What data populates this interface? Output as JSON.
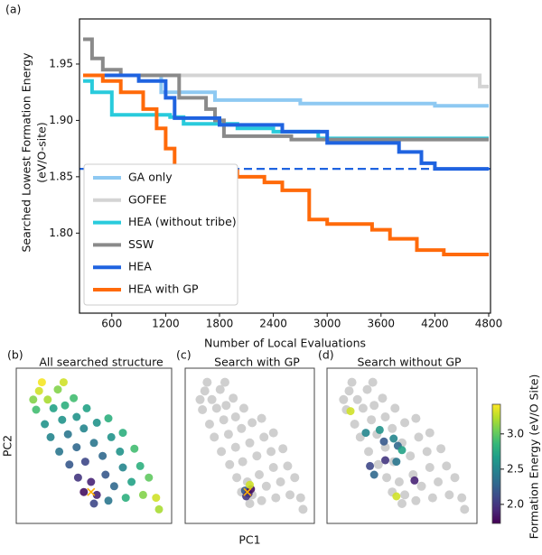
{
  "chart_data": [
    {
      "type": "line",
      "panel_label": "(a)",
      "ylabel": [
        "Searched Lowest Formation Energy",
        "(eV/O-site)"
      ],
      "xlabel": "Number of Local Evaluations",
      "xlim": [
        240,
        4820
      ],
      "ylim": [
        1.729,
        1.99
      ],
      "xticks": [
        600,
        1200,
        1800,
        2400,
        3000,
        3600,
        4200,
        4800
      ],
      "yticks": [
        {
          "value": 1.8,
          "label": "1.80"
        },
        {
          "value": 1.85,
          "label": "1.85"
        },
        {
          "value": 1.9,
          "label": "1.90"
        },
        {
          "value": 1.95,
          "label": "1.95"
        }
      ],
      "reference_line": {
        "value": 1.857,
        "color": "#1f63e0"
      },
      "legend": "lower left",
      "series": [
        {
          "name": "GA only",
          "color": "#8ec9f2",
          "x": [
            280,
            1150,
            1150,
            1750,
            1750,
            2700,
            2700,
            4200,
            4200,
            4800
          ],
          "values": [
            1.94,
            1.94,
            1.925,
            1.925,
            1.918,
            1.918,
            1.915,
            1.915,
            1.913,
            1.913
          ]
        },
        {
          "name": "GOFEE",
          "color": "#d4d4d4",
          "x": [
            280,
            4700,
            4700,
            4800
          ],
          "values": [
            1.94,
            1.94,
            1.93,
            1.93
          ]
        },
        {
          "name": "HEA (without tribe)",
          "color": "#29cbdc",
          "x": [
            280,
            380,
            380,
            600,
            600,
            1250,
            1250,
            1400,
            1400,
            2000,
            2000,
            2400,
            2400,
            2900,
            2900,
            4800
          ],
          "values": [
            1.935,
            1.935,
            1.925,
            1.925,
            1.905,
            1.905,
            1.903,
            1.903,
            1.897,
            1.897,
            1.893,
            1.893,
            1.89,
            1.89,
            1.884,
            1.884
          ]
        },
        {
          "name": "SSW",
          "color": "#8a8a8a",
          "x": [
            280,
            380,
            380,
            500,
            500,
            700,
            700,
            1350,
            1350,
            1650,
            1650,
            1750,
            1750,
            1850,
            1850,
            2600,
            2600,
            4800
          ],
          "values": [
            1.972,
            1.972,
            1.955,
            1.955,
            1.945,
            1.945,
            1.94,
            1.94,
            1.92,
            1.92,
            1.91,
            1.91,
            1.9,
            1.9,
            1.886,
            1.886,
            1.883,
            1.883
          ]
        },
        {
          "name": "HEA",
          "color": "#1f63e0",
          "x": [
            280,
            900,
            900,
            1200,
            1200,
            1300,
            1300,
            1800,
            1800,
            2500,
            2500,
            3000,
            3000,
            3800,
            3800,
            4050,
            4050,
            4200,
            4200,
            4800
          ],
          "values": [
            1.94,
            1.94,
            1.935,
            1.935,
            1.92,
            1.92,
            1.902,
            1.902,
            1.896,
            1.896,
            1.89,
            1.89,
            1.88,
            1.88,
            1.872,
            1.872,
            1.862,
            1.862,
            1.857,
            1.857
          ]
        },
        {
          "name": "HEA with GP",
          "color": "#ff6a0a",
          "x": [
            280,
            500,
            500,
            700,
            700,
            950,
            950,
            1100,
            1100,
            1200,
            1200,
            1300,
            1300,
            1500,
            1500,
            2000,
            2000,
            2300,
            2300,
            2500,
            2500,
            2800,
            2800,
            3000,
            3000,
            3500,
            3500,
            3700,
            3700,
            4000,
            4000,
            4300,
            4300,
            4800
          ],
          "values": [
            1.94,
            1.94,
            1.935,
            1.935,
            1.925,
            1.925,
            1.91,
            1.91,
            1.893,
            1.893,
            1.875,
            1.875,
            1.858,
            1.858,
            1.855,
            1.855,
            1.85,
            1.85,
            1.845,
            1.845,
            1.838,
            1.838,
            1.812,
            1.812,
            1.808,
            1.808,
            1.803,
            1.803,
            1.795,
            1.795,
            1.785,
            1.785,
            1.781,
            1.781
          ]
        }
      ]
    },
    {
      "type": "scatter",
      "panel_label": "(b)",
      "title": "All searched structure",
      "ylabel": "PC2",
      "xlim": [
        0,
        10
      ],
      "ylim": [
        0,
        10
      ],
      "colormap": "viridis",
      "x": [
        1.2,
        1.8,
        2.5,
        1.0,
        2.2,
        3.0,
        3.6,
        1.6,
        2.8,
        3.8,
        4.5,
        2.0,
        3.2,
        4.3,
        5.2,
        6.0,
        2.6,
        3.8,
        5.0,
        6.2,
        7.0,
        3.3,
        4.4,
        5.6,
        6.8,
        7.8,
        3.9,
        4.8,
        5.8,
        7.0,
        8.2,
        4.3,
        5.2,
        6.4,
        7.6,
        8.8,
        5.0,
        6.0,
        7.2,
        8.4,
        9.3,
        9.5,
        1.4,
        2.9,
        0.8
      ],
      "y": [
        8.8,
        8.2,
        8.9,
        7.5,
        7.6,
        7.8,
        8.3,
        6.5,
        6.8,
        7.0,
        7.6,
        5.6,
        5.8,
        6.2,
        6.6,
        6.9,
        4.6,
        4.9,
        5.2,
        5.6,
        5.9,
        3.7,
        3.9,
        4.3,
        4.6,
        4.8,
        2.8,
        2.5,
        3.0,
        3.5,
        3.6,
        1.8,
        1.6,
        2.2,
        2.5,
        2.8,
        1.0,
        1.2,
        1.4,
        1.6,
        1.4,
        0.6,
        9.4,
        9.4,
        8.2
      ],
      "values": [
        3.3,
        3.2,
        3.1,
        2.9,
        2.7,
        2.8,
        2.9,
        2.6,
        2.6,
        2.6,
        2.7,
        2.5,
        2.4,
        2.5,
        2.6,
        2.8,
        2.4,
        2.3,
        2.4,
        2.6,
        2.8,
        2.2,
        2.1,
        2.3,
        2.6,
        2.9,
        2.0,
        1.9,
        2.2,
        2.5,
        2.8,
        1.8,
        1.9,
        2.3,
        2.7,
        3.0,
        2.1,
        2.4,
        2.8,
        3.1,
        3.3,
        3.2,
        3.4,
        3.3,
        3.1
      ],
      "best": {
        "x": 4.8,
        "y": 1.8,
        "color": "#ffb000"
      }
    },
    {
      "type": "scatter",
      "panel_label": "(c)",
      "title": "Search with GP",
      "xlabel": "PC1",
      "xlim": [
        0,
        10
      ],
      "ylim": [
        0,
        10
      ],
      "colormap": "viridis",
      "background_color": "#cfcfcf",
      "x": [
        4.6,
        4.9,
        5.1,
        4.7,
        5.0
      ],
      "y": [
        1.9,
        1.7,
        2.0,
        1.5,
        2.3
      ],
      "values": [
        2.2,
        1.9,
        1.8,
        2.0,
        3.3
      ],
      "best": {
        "x": 4.8,
        "y": 1.8,
        "color": "#ffb000"
      }
    },
    {
      "type": "scatter",
      "panel_label": "(d)",
      "title": "Search without GP",
      "xlim": [
        0,
        10
      ],
      "ylim": [
        0,
        10
      ],
      "colormap": "viridis",
      "background_color": "#cfcfcf",
      "x": [
        1.3,
        2.4,
        3.4,
        3.7,
        4.4,
        4.7,
        5.0,
        3.8,
        4.6,
        3.0,
        5.9,
        4.6,
        2.7
      ],
      "y": [
        7.4,
        5.9,
        6.1,
        5.3,
        5.5,
        5.0,
        4.7,
        4.0,
        3.9,
        3.0,
        2.6,
        1.5,
        3.6
      ],
      "values": [
        3.3,
        2.5,
        2.6,
        2.2,
        2.5,
        2.3,
        2.7,
        2.0,
        2.4,
        2.3,
        1.9,
        3.3,
        2.1
      ]
    },
    {
      "type": "colorbar",
      "label": "Formation Energy (eV/O Site)",
      "colormap": "viridis",
      "clim": [
        1.73,
        3.42
      ],
      "ticks": [
        {
          "value": 2,
          "label": "2.0"
        },
        {
          "value": 2.5,
          "label": "2.5"
        },
        {
          "value": 3,
          "label": "3.0"
        }
      ]
    }
  ]
}
